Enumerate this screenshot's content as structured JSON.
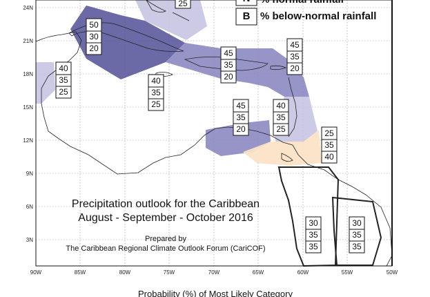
{
  "title_line1": "Precipitation outlook for the Caribbean",
  "title_line2": "August - September - October 2016",
  "prepared_by": "Prepared by",
  "organization": "The Caribbean Regional Climate Outlook Forum (CariCOF)",
  "probability_label": "Probability (%) of Most Likely Category",
  "legend": {
    "n_key": "N",
    "n_text": "% normal rainfall",
    "b_key": "B",
    "b_text": "% below-normal rainfall"
  },
  "lat_labels": [
    "24N",
    "21N",
    "18N",
    "15N",
    "12N",
    "9N",
    "6N",
    "3N"
  ],
  "lon_labels": [
    "90W",
    "85W",
    "80W",
    "75W",
    "70W",
    "65W",
    "60W",
    "55W",
    "50W"
  ],
  "colors": {
    "dark_purple": "#5b5a9c",
    "mid_purple": "#8c89c2",
    "light_purple": "#c7c4e2",
    "light_peach": "#fbe3c7"
  },
  "boxes": [
    {
      "id": "bahamas-partial",
      "values": [
        "25"
      ]
    },
    {
      "id": "cuba-west",
      "values": [
        "50",
        "30",
        "20"
      ]
    },
    {
      "id": "belize",
      "values": [
        "40",
        "35",
        "25"
      ]
    },
    {
      "id": "jamaica-south",
      "values": [
        "40",
        "35",
        "25"
      ]
    },
    {
      "id": "hispaniola",
      "values": [
        "45",
        "35",
        "20"
      ]
    },
    {
      "id": "leeward",
      "values": [
        "45",
        "35",
        "20"
      ]
    },
    {
      "id": "windward",
      "values": [
        "40",
        "35",
        "25"
      ]
    },
    {
      "id": "abc-islands",
      "values": [
        "45",
        "35",
        "20"
      ]
    },
    {
      "id": "trinidad",
      "values": [
        "25",
        "35",
        "40"
      ]
    },
    {
      "id": "guyana",
      "values": [
        "30",
        "35",
        "35"
      ]
    },
    {
      "id": "suriname-fg",
      "values": [
        "30",
        "35",
        "35"
      ]
    }
  ]
}
